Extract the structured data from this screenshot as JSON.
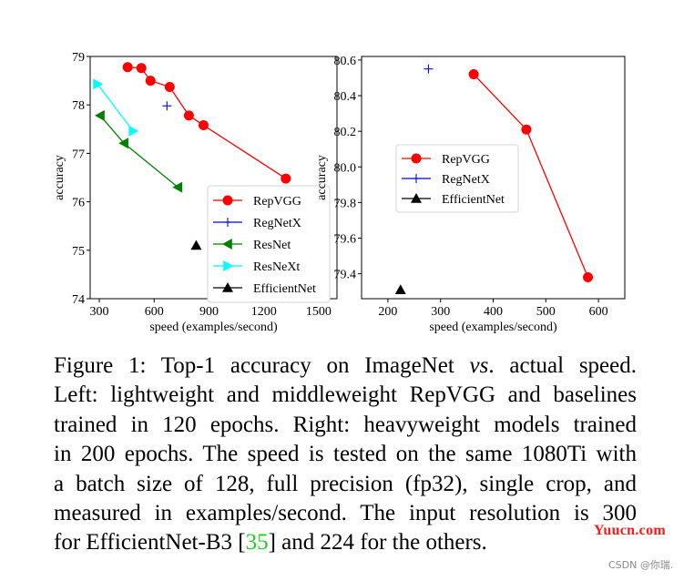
{
  "chart_data": [
    {
      "type": "line",
      "position": "left",
      "title": "",
      "xlabel": "speed (examples/second)",
      "ylabel": "accuracy",
      "xlim": [
        250,
        1600
      ],
      "ylim": [
        74,
        79
      ],
      "xticks": [
        300,
        600,
        900,
        1200,
        1500
      ],
      "yticks": [
        74,
        75,
        76,
        77,
        78,
        79
      ],
      "grid": false,
      "legend_placement": "lower-right",
      "series": [
        {
          "name": "RepVGG",
          "color": "#ff0000",
          "marker": "circle",
          "line": true,
          "x": [
            455,
            530,
            580,
            685,
            790,
            870,
            1320
          ],
          "y": [
            78.78,
            78.76,
            78.5,
            78.37,
            77.78,
            77.58,
            76.48
          ]
        },
        {
          "name": "RegNetX",
          "color": "#0000ff",
          "marker": "plus",
          "line": true,
          "x": [
            670
          ],
          "y": [
            77.98
          ]
        },
        {
          "name": "ResNet",
          "color": "#008000",
          "marker": "triangle-left",
          "line": true,
          "x": [
            305,
            435,
            730
          ],
          "y": [
            77.78,
            77.21,
            76.3
          ]
        },
        {
          "name": "ResNeXt",
          "color": "#00ffff",
          "marker": "triangle-right",
          "line": true,
          "x": [
            290,
            485
          ],
          "y": [
            78.43,
            77.46
          ]
        },
        {
          "name": "EfficientNet",
          "color": "#000000",
          "marker": "triangle-up",
          "line": true,
          "x": [
            830
          ],
          "y": [
            75.1
          ]
        }
      ]
    },
    {
      "type": "line",
      "position": "right",
      "title": "",
      "xlabel": "speed (examples/second)",
      "ylabel": "accuracy",
      "xlim": [
        150,
        650
      ],
      "ylim": [
        79.26,
        80.62
      ],
      "xticks": [
        200,
        300,
        400,
        500,
        600
      ],
      "yticks": [
        79.4,
        79.6,
        79.8,
        80.0,
        80.2,
        80.4,
        80.6
      ],
      "ytick_labels": [
        "79.4",
        "79.6",
        "79.8",
        "80.0",
        "80.2",
        "80.4",
        "80.6"
      ],
      "grid": false,
      "legend_placement": "center-left",
      "series": [
        {
          "name": "RepVGG",
          "color": "#ff0000",
          "marker": "circle",
          "line": true,
          "x": [
            363,
            463,
            580
          ],
          "y": [
            80.52,
            80.21,
            79.38
          ]
        },
        {
          "name": "RegNetX",
          "color": "#0000ff",
          "marker": "plus",
          "line": true,
          "x": [
            277
          ],
          "y": [
            80.55
          ]
        },
        {
          "name": "EfficientNet",
          "color": "#000000",
          "marker": "triangle-up",
          "line": true,
          "x": [
            224
          ],
          "y": [
            79.31
          ]
        }
      ]
    }
  ],
  "caption": {
    "lines": [
      [
        "Figure 1:  Top-1 accuracy on ImageNet ",
        {
          "italic": "vs"
        },
        ". actual speed."
      ],
      [
        "Left: lightweight and middleweight RepVGG and baselines"
      ],
      [
        "trained in 120 epochs.  Right:  heavyweight models trained"
      ],
      [
        "in 200 epochs. The speed is tested on the same 1080Ti with"
      ],
      [
        "a batch size of 128, full precision (fp32), single crop, and"
      ],
      [
        "measured in examples/second.  The input resolution is 300"
      ],
      [
        "for EfficientNet-B3 [",
        {
          "cite": "35"
        },
        "] and 224 for the others."
      ]
    ],
    "line_texts": {
      "l1a": "Figure 1:  Top-1 accuracy on ImageNet ",
      "l1b": "vs",
      "l1c": ". actual speed.",
      "l2": "Left: lightweight and middleweight RepVGG and baselines",
      "l3": "trained in 120 epochs.  Right:  heavyweight models trained",
      "l4": "in 200 epochs. The speed is tested on the same 1080Ti with",
      "l5": "a batch size of 128, full precision (fp32), single crop, and",
      "l6": "measured in examples/second.  The input resolution is 300",
      "l7a": "for EfficientNet-B3 [",
      "l7b": "35",
      "l7c": "] and 224 for the others."
    }
  },
  "watermark": "Yuucn.com",
  "credit": "CSDN @你瑞."
}
